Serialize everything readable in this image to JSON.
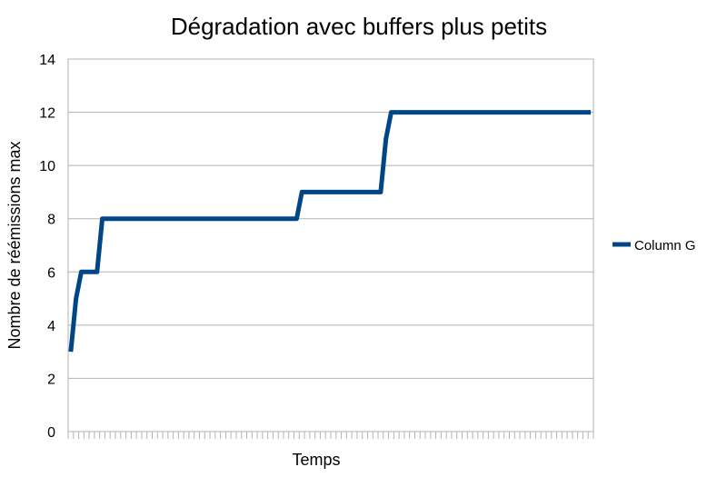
{
  "chart_data": {
    "type": "line",
    "title": "Dégradation avec buffers plus petits",
    "xlabel": "Temps",
    "ylabel": "Nombre de réémissions max",
    "ylim": [
      0,
      14
    ],
    "y_ticks": [
      0,
      2,
      4,
      6,
      8,
      10,
      12,
      14
    ],
    "grid": true,
    "legend_position": "right",
    "x": [
      0,
      1,
      2,
      3,
      4,
      5,
      6,
      7,
      8,
      9,
      10,
      11,
      12,
      13,
      14,
      15,
      16,
      17,
      18,
      19,
      20,
      21,
      22,
      23,
      24,
      25,
      26,
      27,
      28,
      29,
      30,
      31,
      32,
      33,
      34,
      35,
      36,
      37,
      38,
      39,
      40,
      41,
      42,
      43,
      44,
      45,
      46,
      47,
      48,
      49,
      50,
      51,
      52,
      53,
      54,
      55,
      56,
      57,
      58,
      59,
      60,
      61,
      62,
      63,
      64,
      65,
      66,
      67,
      68,
      69,
      70,
      71,
      72,
      73,
      74,
      75,
      76,
      77,
      78,
      79,
      80,
      81,
      82,
      83,
      84,
      85,
      86,
      87,
      88,
      89,
      90,
      91,
      92,
      93,
      94,
      95,
      96,
      97,
      98,
      99
    ],
    "series": [
      {
        "name": "Column G",
        "color": "#004586",
        "values": [
          3,
          5,
          6,
          6,
          6,
          6,
          8,
          8,
          8,
          8,
          8,
          8,
          8,
          8,
          8,
          8,
          8,
          8,
          8,
          8,
          8,
          8,
          8,
          8,
          8,
          8,
          8,
          8,
          8,
          8,
          8,
          8,
          8,
          8,
          8,
          8,
          8,
          8,
          8,
          8,
          8,
          8,
          8,
          8,
          9,
          9,
          9,
          9,
          9,
          9,
          9,
          9,
          9,
          9,
          9,
          9,
          9,
          9,
          9,
          9,
          11,
          12,
          12,
          12,
          12,
          12,
          12,
          12,
          12,
          12,
          12,
          12,
          12,
          12,
          12,
          12,
          12,
          12,
          12,
          12,
          12,
          12,
          12,
          12,
          12,
          12,
          12,
          12,
          12,
          12,
          12,
          12,
          12,
          12,
          12,
          12,
          12,
          12,
          12,
          12
        ]
      }
    ]
  }
}
